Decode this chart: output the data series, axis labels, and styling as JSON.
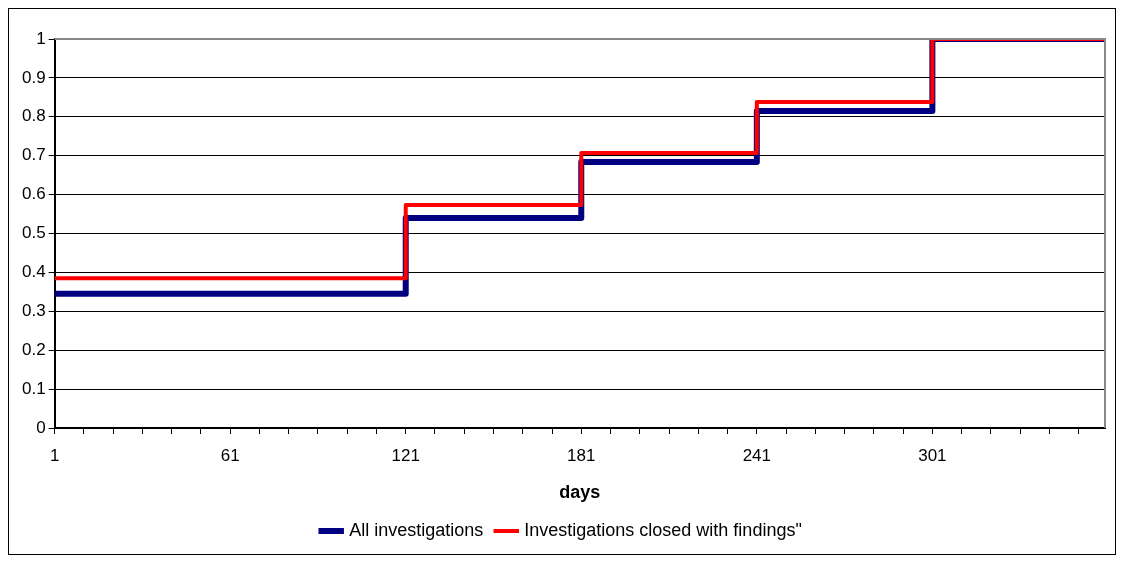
{
  "chart_data": {
    "type": "step",
    "xlabel": "days",
    "xlim": [
      1,
      360
    ],
    "xticks": [
      1,
      {
        "value": 11,
        "label": null
      },
      {
        "value": 21,
        "label": null
      },
      {
        "value": 31,
        "label": null
      },
      {
        "value": 41,
        "label": null
      },
      {
        "value": 51,
        "label": null
      },
      61,
      {
        "value": 71,
        "label": null
      },
      {
        "value": 81,
        "label": null
      },
      {
        "value": 91,
        "label": null
      },
      {
        "value": 101,
        "label": null
      },
      {
        "value": 111,
        "label": null
      },
      121,
      {
        "value": 131,
        "label": null
      },
      {
        "value": 141,
        "label": null
      },
      {
        "value": 151,
        "label": null
      },
      {
        "value": 161,
        "label": null
      },
      {
        "value": 171,
        "label": null
      },
      181,
      {
        "value": 191,
        "label": null
      },
      {
        "value": 201,
        "label": null
      },
      {
        "value": 211,
        "label": null
      },
      {
        "value": 221,
        "label": null
      },
      {
        "value": 231,
        "label": null
      },
      241,
      {
        "value": 251,
        "label": null
      },
      {
        "value": 261,
        "label": null
      },
      {
        "value": 271,
        "label": null
      },
      {
        "value": 281,
        "label": null
      },
      {
        "value": 291,
        "label": null
      },
      301,
      {
        "value": 311,
        "label": null
      },
      {
        "value": 321,
        "label": null
      },
      {
        "value": 331,
        "label": null
      },
      {
        "value": 341,
        "label": null
      },
      {
        "value": 351,
        "label": null
      }
    ],
    "ylim": [
      0,
      1
    ],
    "yticks": [
      0,
      0.1,
      0.2,
      0.3,
      0.4,
      0.5,
      0.6,
      0.7,
      0.8,
      0.9,
      1
    ],
    "x": [
      1,
      121,
      181,
      241,
      301,
      360
    ],
    "series": [
      {
        "name": "All investigations",
        "color": "#000080",
        "values": [
          0.345,
          0.54,
          0.684,
          0.815,
          1,
          1
        ]
      },
      {
        "name": "Investigations closed with findings\"",
        "color": "#ff0000",
        "values": [
          0.385,
          0.573,
          0.707,
          0.838,
          1,
          1
        ]
      }
    ],
    "grid": "y",
    "legend": "bottom",
    "marker": "none",
    "line_style": "solid"
  }
}
